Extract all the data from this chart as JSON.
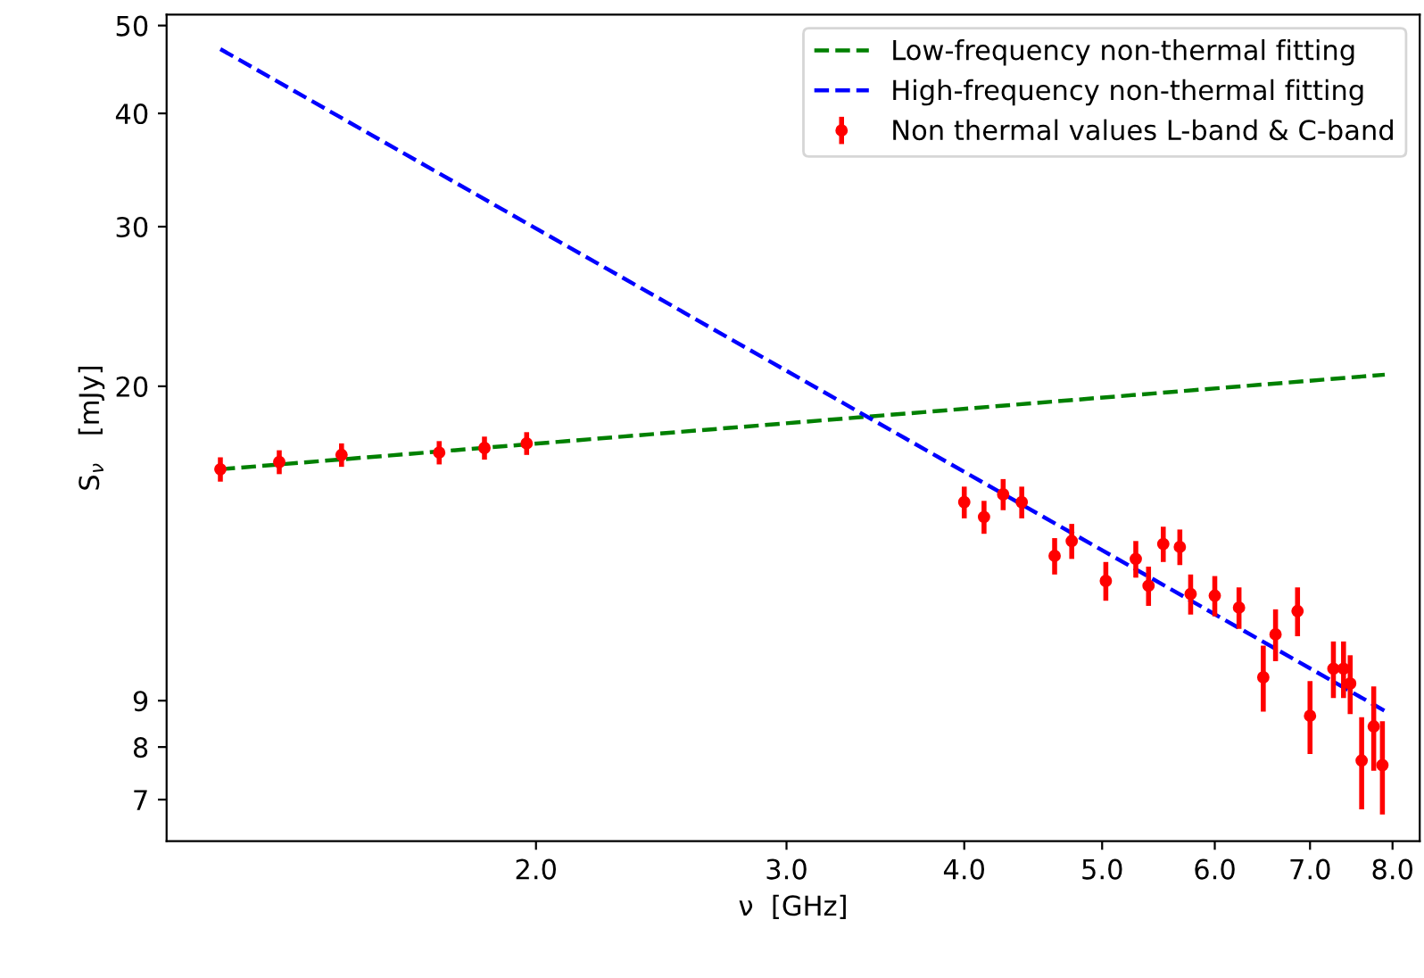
{
  "chart_data": {
    "type": "scatter",
    "xlabel": "ν  [GHz]",
    "ylabel": "S$_{ν}$   [mJy]",
    "log": "xy",
    "grid": false,
    "legend": "top right",
    "xlim": [
      1.1,
      8.36
    ],
    "ylim": [
      6.3,
      51.4
    ],
    "xticks": [
      {
        "value": 2,
        "label": "2.0"
      },
      {
        "value": 3,
        "label": "3.0"
      },
      {
        "value": 4,
        "label": "4.0"
      },
      {
        "value": 5,
        "label": "5.0"
      },
      {
        "value": 6,
        "label": "6.0"
      },
      {
        "value": 7,
        "label": "7.0"
      },
      {
        "value": 8,
        "label": "8.0"
      }
    ],
    "yticks": [
      7,
      8,
      9,
      20,
      30,
      40,
      50
    ],
    "series": [
      {
        "name": "Low-frequency non-thermal fitting",
        "type": "line",
        "line_style": "dashed",
        "marker": "none",
        "color": "#008000",
        "x": [
          1.2,
          7.9
        ],
        "values": [
          16.2,
          20.6
        ]
      },
      {
        "name": "High-frequency non-thermal fitting",
        "type": "line",
        "line_style": "dashed",
        "marker": "none",
        "color": "#0000ff",
        "x": [
          1.2,
          7.9
        ],
        "values": [
          47.1,
          8.77
        ]
      },
      {
        "name": "Non thermal values L-band & C-band",
        "marker": "circle",
        "color": "#ff0000",
        "x": [
          1.2,
          1.32,
          1.46,
          1.71,
          1.84,
          1.97,
          4.0,
          4.13,
          4.26,
          4.39,
          4.63,
          4.76,
          5.03,
          5.28,
          5.39,
          5.52,
          5.67,
          5.77,
          6.0,
          6.24,
          6.49,
          6.62,
          6.86,
          7.0,
          7.27,
          7.39,
          7.47,
          7.61,
          7.76,
          7.87
        ],
        "values": [
          16.2,
          16.5,
          16.8,
          16.9,
          17.1,
          17.3,
          14.9,
          14.35,
          15.2,
          14.9,
          13.0,
          13.5,
          12.2,
          12.9,
          12.05,
          13.4,
          13.3,
          11.8,
          11.75,
          11.4,
          9.55,
          10.65,
          11.3,
          8.66,
          9.76,
          9.76,
          9.4,
          7.73,
          8.43,
          7.64
        ],
        "errors": [
          0.5,
          0.5,
          0.5,
          0.5,
          0.5,
          0.5,
          0.6,
          0.6,
          0.6,
          0.6,
          0.6,
          0.6,
          0.6,
          0.6,
          0.6,
          0.6,
          0.6,
          0.6,
          0.6,
          0.6,
          0.8,
          0.7,
          0.7,
          0.8,
          0.7,
          0.7,
          0.7,
          0.9,
          0.9,
          0.9
        ]
      }
    ]
  }
}
